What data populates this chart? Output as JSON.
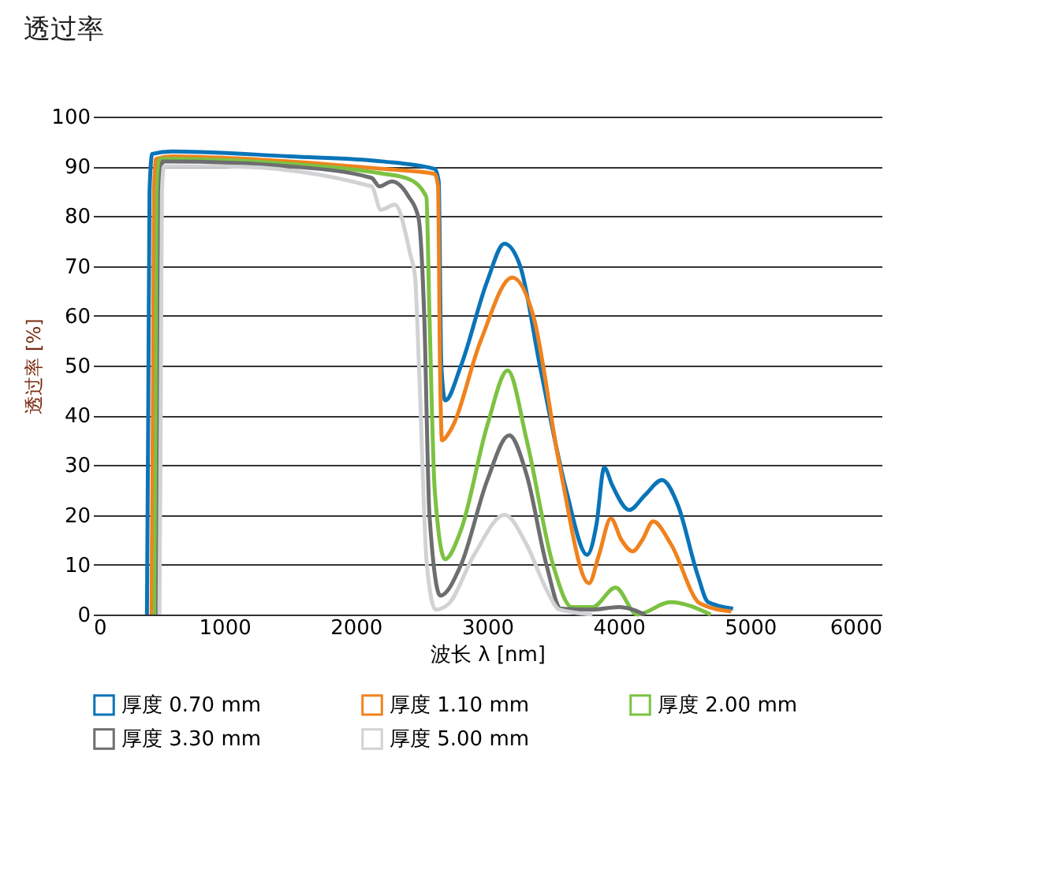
{
  "chart_data": {
    "type": "line",
    "title": "透过率",
    "xlabel": "波长 λ [nm]",
    "ylabel": "透过率 [%]",
    "xlim": [
      0,
      6000
    ],
    "xticks": [
      0,
      1000,
      2000,
      3000,
      4000,
      5000,
      6000
    ],
    "ylim": [
      0,
      100
    ],
    "yticks": [
      0,
      10,
      20,
      30,
      40,
      50,
      60,
      70,
      80,
      90,
      100
    ],
    "grid": "y",
    "legend": "bottom",
    "marker": "none",
    "line_style": "solid",
    "series": [
      {
        "name": "厚度 0.70 mm",
        "color": "#0a74b8",
        "x": [
          410,
          420,
          430,
          450,
          600,
          1500,
          2200,
          2600,
          2630,
          2650,
          2680,
          2800,
          3000,
          3130,
          3250,
          3400,
          3600,
          3760,
          3830,
          3890,
          3950,
          4080,
          4200,
          4330,
          4450,
          4600,
          4680,
          4870
        ],
        "values": [
          0,
          40,
          85,
          92.5,
          93,
          92,
          91,
          89.5,
          87,
          50,
          43,
          50,
          67,
          74.5,
          70,
          50,
          25,
          12,
          18,
          29.5,
          26,
          21,
          24,
          27,
          22,
          8,
          2.5,
          1.2
        ]
      },
      {
        "name": "厚度 1.10 mm",
        "color": "#f0821e",
        "x": [
          445,
          455,
          464,
          480,
          600,
          1500,
          2200,
          2600,
          2625,
          2640,
          2655,
          2720,
          2950,
          3190,
          3350,
          3550,
          3774,
          3850,
          3940,
          4020,
          4107,
          4180,
          4262,
          4400,
          4619,
          4857
        ],
        "values": [
          0,
          40,
          85,
          91.5,
          92,
          91,
          89.5,
          88.5,
          86,
          50,
          35,
          37,
          55,
          67.7,
          60,
          30,
          6.3,
          12,
          19.3,
          15,
          12.7,
          15,
          18.7,
          14,
          2.2,
          0.6
        ]
      },
      {
        "name": "厚度 2.00 mm",
        "color": "#7cc242",
        "x": [
          470,
          480,
          488,
          510,
          600,
          1500,
          2190,
          2400,
          2536,
          2560,
          2600,
          2679,
          2800,
          3000,
          3155,
          3300,
          3500,
          3643,
          3800,
          3976,
          4140,
          4393,
          4700
        ],
        "values": [
          0,
          40,
          85,
          91.5,
          91.5,
          90.5,
          88.6,
          87.5,
          83.9,
          60,
          25,
          11.1,
          17,
          38,
          49,
          35,
          10,
          1.5,
          1.5,
          5.4,
          0,
          2.5,
          0
        ]
      },
      {
        "name": "厚度 3.30 mm",
        "color": "#6d6e70",
        "x": [
          495,
          505,
          512,
          530,
          600,
          1500,
          2119,
          2179,
          2274,
          2400,
          2476,
          2520,
          2560,
          2643,
          2800,
          3000,
          3167,
          3300,
          3450,
          3560,
          3800,
          4000,
          4200
        ],
        "values": [
          0,
          40,
          85,
          91,
          91,
          90,
          87.7,
          86,
          87,
          84,
          79.7,
          60,
          20,
          3.8,
          10,
          27,
          36,
          28,
          10,
          1.2,
          1,
          1.5,
          0
        ]
      },
      {
        "name": "厚度 5.00 mm",
        "color": "#d1d2d4",
        "x": [
          505,
          515,
          524,
          540,
          600,
          1000,
          2119,
          2190,
          2298,
          2417,
          2450,
          2480,
          2540,
          2607,
          2700,
          2900,
          3131,
          3300,
          3450,
          3548,
          3800
        ],
        "values": [
          0,
          40,
          85,
          90,
          90,
          90,
          86,
          81.3,
          82.3,
          72,
          68,
          50,
          10,
          1,
          2,
          12,
          20,
          14,
          5,
          1,
          0
        ]
      }
    ]
  }
}
